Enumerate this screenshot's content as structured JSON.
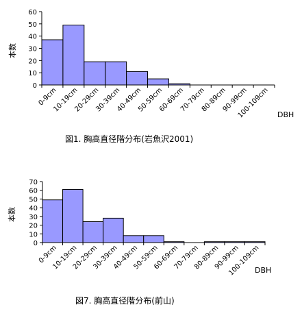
{
  "chart_data": [
    {
      "type": "bar",
      "caption": "図1. 胸高直径階分布(岩魚沢2001)",
      "ylabel": "本数",
      "xlabel": "DBH",
      "ylim": [
        0,
        60
      ],
      "yticks": [
        0,
        10,
        20,
        30,
        40,
        50,
        60
      ],
      "categories": [
        "0-9cm",
        "10-19cm",
        "20-29cm",
        "30-39cm",
        "40-49cm",
        "50-59cm",
        "60-69cm",
        "70-79cm",
        "80-89cm",
        "90-99cm",
        "100-109cm"
      ],
      "values": [
        37,
        49,
        19,
        19,
        11,
        5,
        1,
        0,
        0,
        0,
        0
      ],
      "grid": false,
      "bar_color": "#9999ff"
    },
    {
      "type": "bar",
      "caption": "図7. 胸高直径階分布(前山)",
      "ylabel": "本数",
      "xlabel": "DBH",
      "ylim": [
        0,
        70
      ],
      "yticks": [
        0,
        10,
        20,
        30,
        40,
        50,
        60,
        70
      ],
      "categories": [
        "0-9cm",
        "10-19cm",
        "20-29cm",
        "30-39cm",
        "40-49cm",
        "50-59cm",
        "60-69cm",
        "70-79cm",
        "80-89cm",
        "90-99cm",
        "100-109cm"
      ],
      "values": [
        49,
        61,
        24,
        28,
        8,
        8,
        1,
        0,
        1,
        1,
        1
      ],
      "grid": false,
      "bar_color": "#9999ff"
    }
  ]
}
